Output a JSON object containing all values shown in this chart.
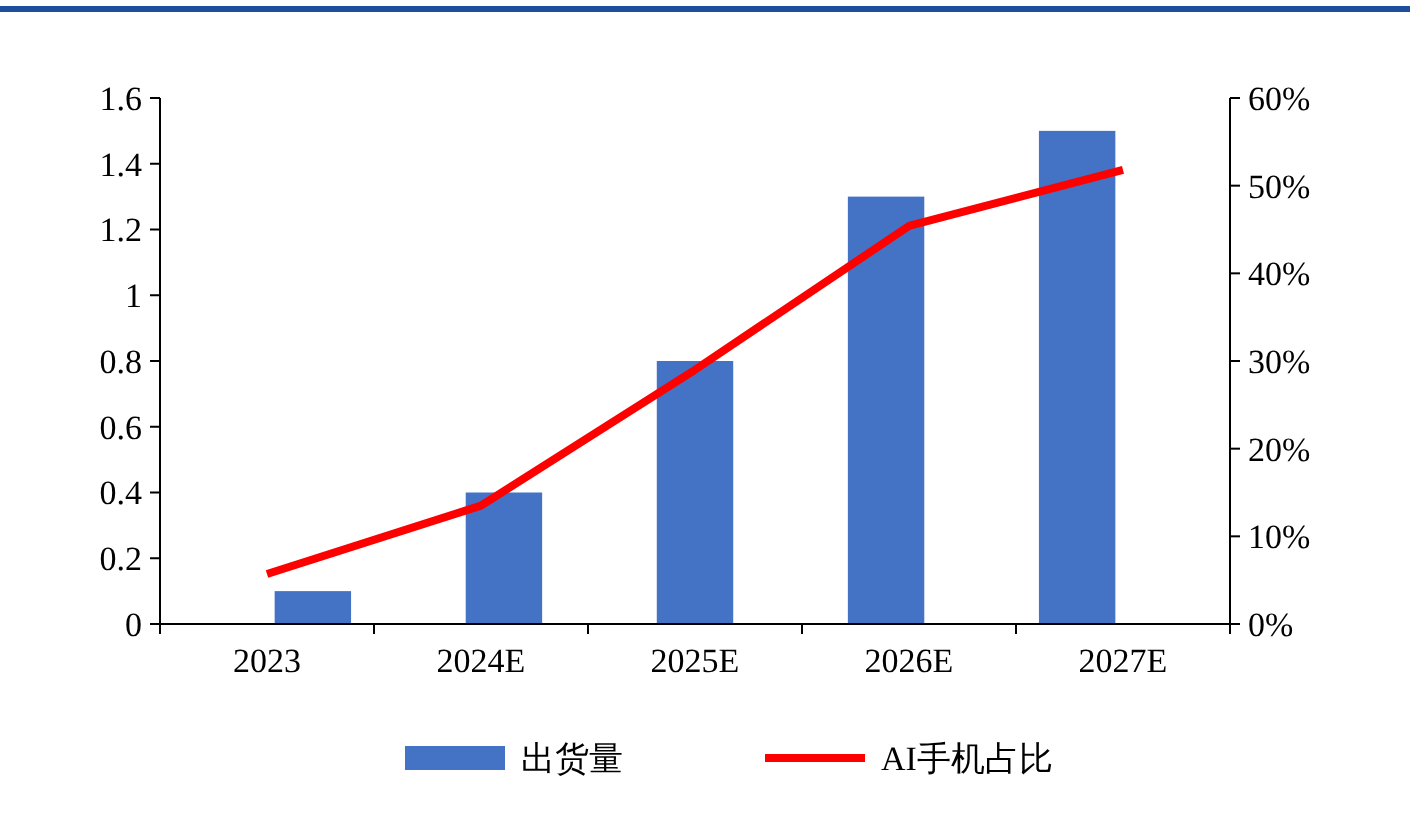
{
  "chart_data": {
    "type": "bar",
    "categories": [
      "2023",
      "2024E",
      "2025E",
      "2026E",
      "2027E"
    ],
    "series": [
      {
        "name": "出货量",
        "color": "#4472c4",
        "values": [
          0.1,
          0.4,
          0.8,
          1.3,
          1.5
        ]
      },
      {
        "name": "AI手机占比",
        "type": "line",
        "axis": "y2",
        "color": "#ff0000",
        "values": [
          5.7,
          13.5,
          29,
          45.4,
          51.8
        ]
      }
    ],
    "ylim": [
      0,
      1.6
    ],
    "yticks": [
      0,
      0.2,
      0.4,
      0.6,
      0.8,
      1,
      1.2,
      1.4,
      1.6
    ],
    "y2lim": [
      0,
      60
    ],
    "y2ticks": [
      {
        "value": 0,
        "label": "0%"
      },
      {
        "value": 10,
        "label": "10%"
      },
      {
        "value": 20,
        "label": "20%"
      },
      {
        "value": 30,
        "label": "30%"
      },
      {
        "value": 40,
        "label": "40%"
      },
      {
        "value": 50,
        "label": "50%"
      },
      {
        "value": 60,
        "label": "60%"
      }
    ],
    "legend": "bottom",
    "grid": false,
    "marker": "none",
    "line_style": "solid"
  }
}
